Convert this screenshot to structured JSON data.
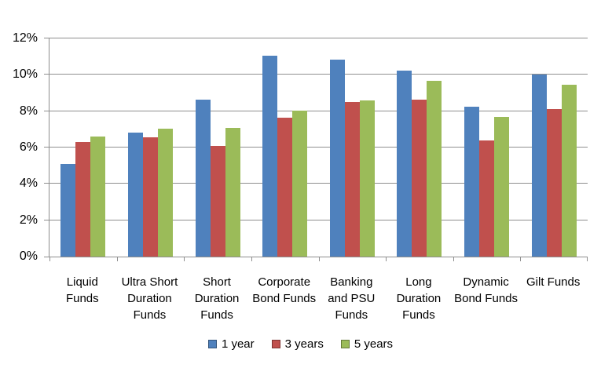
{
  "chart_data": {
    "type": "bar",
    "title": "",
    "xlabel": "",
    "ylabel": "",
    "categories": [
      "Liquid Funds",
      "Ultra Short Duration Funds",
      "Short Duration Funds",
      "Corporate Bond Funds",
      "Banking and PSU Funds",
      "Long Duration Funds",
      "Dynamic Bond Funds",
      "Gilt Funds"
    ],
    "category_label_lines": [
      [
        "Liquid",
        "Funds"
      ],
      [
        "Ultra Short",
        "Duration",
        "Funds"
      ],
      [
        "Short",
        "Duration",
        "Funds"
      ],
      [
        "Corporate",
        "Bond Funds"
      ],
      [
        "Banking",
        "and PSU",
        "Funds"
      ],
      [
        "Long",
        "Duration",
        "Funds"
      ],
      [
        "Dynamic",
        "Bond Funds"
      ],
      [
        "Gilt Funds"
      ]
    ],
    "series": [
      {
        "name": "1 year",
        "color": "#4F81BD",
        "values": [
          5.1,
          6.8,
          8.65,
          11.05,
          10.85,
          10.25,
          8.25,
          10.0
        ]
      },
      {
        "name": "3 years",
        "color": "#C0504D",
        "values": [
          6.3,
          6.55,
          6.1,
          7.65,
          8.5,
          8.65,
          6.4,
          8.1
        ]
      },
      {
        "name": "5 years",
        "color": "#9BBB59",
        "values": [
          6.6,
          7.05,
          7.1,
          8.05,
          8.6,
          9.65,
          7.7,
          9.45
        ]
      }
    ],
    "ylim": [
      0,
      12
    ],
    "yticks": [
      0,
      2,
      4,
      6,
      8,
      10,
      12
    ],
    "ytick_labels": [
      "0%",
      "2%",
      "4%",
      "6%",
      "8%",
      "10%",
      "12%"
    ],
    "grid": true,
    "legend_position": "bottom",
    "axis_color": "#8e8e8e",
    "text_color": "#000000",
    "background_color": "#ffffff"
  }
}
